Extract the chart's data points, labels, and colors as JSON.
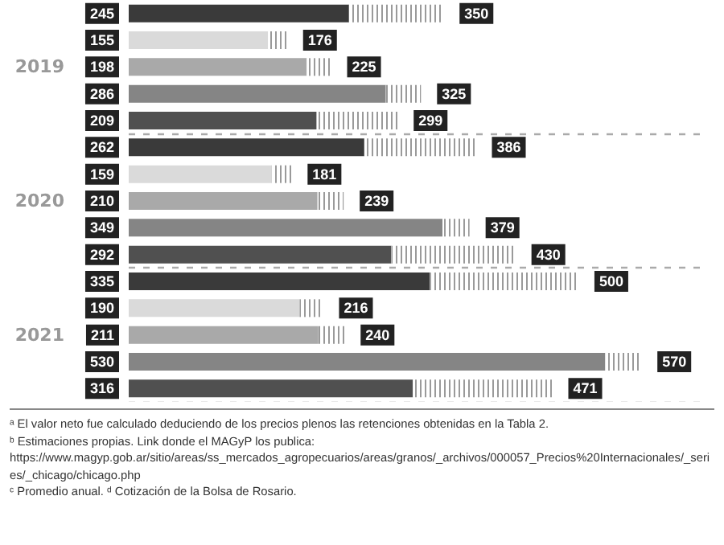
{
  "chart_data": {
    "type": "bar",
    "orientation": "horizontal",
    "categories": [
      null,
      null,
      "2019",
      null,
      null,
      null,
      null,
      "2020",
      null,
      null,
      null,
      null,
      "2021",
      null,
      null
    ],
    "series": [
      {
        "values": [
          245,
          155,
          198,
          286,
          209,
          262,
          159,
          210,
          349,
          292,
          335,
          190,
          211,
          530,
          316
        ],
        "value_labels": [
          "245",
          "155",
          "198",
          "286",
          "209",
          "262",
          "159",
          "210",
          "349",
          "292",
          "335",
          "190",
          "211",
          "530",
          "316"
        ],
        "colors": [
          "#3a3a3a",
          "#dadada",
          "#a9a9a9",
          "#858585",
          "#505050",
          "#3a3a3a",
          "#dadada",
          "#a9a9a9",
          "#858585",
          "#505050",
          "#3a3a3a",
          "#dadada",
          "#a9a9a9",
          "#858585",
          "#505050"
        ]
      },
      {
        "values": [
          105,
          21,
          27,
          39,
          90,
          124,
          22,
          29,
          30,
          138,
          165,
          26,
          29,
          40,
          155
        ],
        "color": "#9a9a9a"
      }
    ],
    "totals": [
      "350",
      "176",
      "225",
      "325",
      "299",
      "386",
      "181",
      "239",
      "379",
      "430",
      "500",
      "216",
      "240",
      "570",
      "471"
    ],
    "stacked": true,
    "tick_labels": "y",
    "grid": false,
    "annotations": [
      "ᵃ El valor neto fue calculado deduciendo de los precios plenos las retenciones obtenidas en la Tabla 2.",
      "ᵇ Estimaciones propias. Link donde el MAGyP los publica: https://www.magyp.gob.ar/sitio/areas/ss_mercados_agropecuarios/areas/granos/_archivos/000057_Precios%20Internacionales/_series/_chicago/chicago.php",
      "ᶜ Promedio anual. ᵈ Cotización de la Bolsa de Rosario."
    ]
  }
}
